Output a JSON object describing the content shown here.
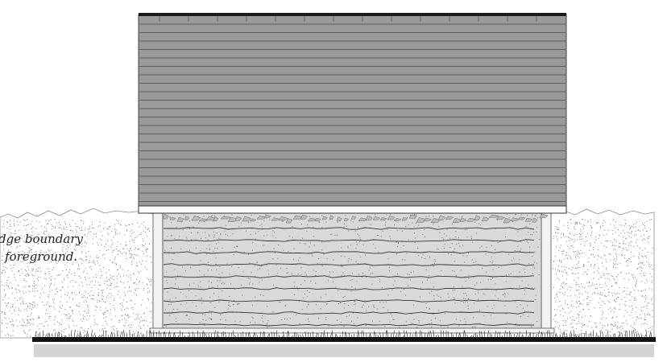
{
  "annotation": {
    "line1": "dge boundary",
    "line2": "foreground."
  },
  "colors": {
    "roof_fill": "#9a9a9a",
    "roof_line": "#5f5f5f",
    "roof_edge": "#1a1a1a",
    "wall_fill": "#d9d9d9",
    "wall_line": "#333333",
    "hedge_stipple": "#7a7a7a",
    "ground_line": "#111111",
    "ground_shadow": "#d4d4d4",
    "post_fill": "#f2f2f2"
  }
}
